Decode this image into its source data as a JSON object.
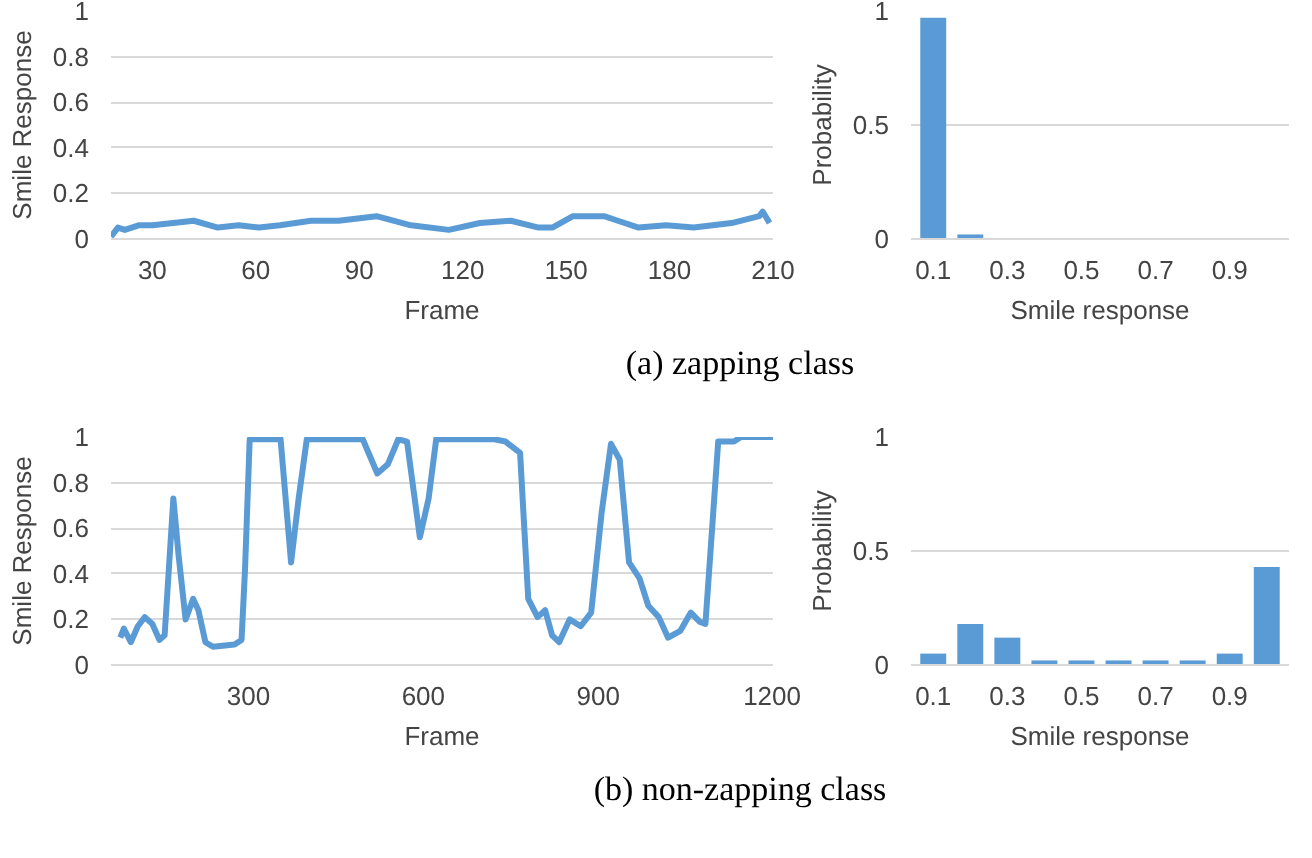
{
  "chart_data": [
    {
      "type": "line",
      "xlabel": "Frame",
      "ylabel": "Smile Response",
      "xlim": [
        18,
        210
      ],
      "xticks": [
        30,
        60,
        90,
        120,
        150,
        180,
        210
      ],
      "ylim": [
        0,
        1
      ],
      "yticks": [
        0,
        0.2,
        0.4,
        0.6,
        0.8,
        1
      ],
      "grid": "y",
      "annotations": [
        "(a)  zapping class"
      ],
      "series": [
        {
          "color": "#5b9bd5",
          "x": [
            18,
            20,
            22,
            26,
            30,
            36,
            42,
            49,
            55,
            61,
            67,
            76,
            84,
            95,
            105,
            116,
            125,
            134,
            142,
            146,
            152,
            161,
            165,
            171,
            179,
            187,
            198,
            206,
            207,
            209
          ],
          "values": [
            0.01,
            0.05,
            0.04,
            0.06,
            0.06,
            0.07,
            0.08,
            0.05,
            0.06,
            0.05,
            0.06,
            0.08,
            0.08,
            0.1,
            0.06,
            0.04,
            0.07,
            0.08,
            0.05,
            0.05,
            0.1,
            0.1,
            0.08,
            0.05,
            0.06,
            0.05,
            0.07,
            0.1,
            0.12,
            0.07
          ]
        }
      ]
    },
    {
      "type": "bar",
      "xlabel": "Smile response",
      "ylabel": "Probability",
      "categories": [
        "0.1",
        null,
        "0.3",
        null,
        "0.5",
        null,
        "0.7",
        null,
        "0.9",
        null
      ],
      "ylim": [
        0,
        1
      ],
      "yticks": [
        0,
        0.5,
        1
      ],
      "grid": "y",
      "series": [
        {
          "color": "#5b9bd5",
          "values": [
            0.97,
            0.02,
            0,
            0,
            0,
            0,
            0,
            0,
            0,
            0
          ]
        }
      ]
    },
    {
      "type": "line",
      "xlabel": "Frame",
      "ylabel": "Smile Response",
      "xlim": [
        64,
        1200
      ],
      "xticks": [
        300,
        600,
        900,
        1200
      ],
      "ylim": [
        0,
        1
      ],
      "yticks": [
        0,
        0.2,
        0.4,
        0.6,
        0.8,
        1
      ],
      "grid": "y",
      "annotations": [
        "(b)  non-zapping class"
      ],
      "series": [
        {
          "color": "#5b9bd5",
          "x": [
            80,
            86,
            98,
            110,
            122,
            135,
            147,
            156,
            171,
            180,
            192,
            205,
            214,
            226,
            239,
            276,
            288,
            294,
            302,
            355,
            373,
            386,
            400,
            496,
            521,
            539,
            557,
            572,
            594,
            609,
            622,
            722,
            741,
            766,
            780,
            796,
            809,
            821,
            833,
            851,
            870,
            888,
            906,
            922,
            937,
            953,
            971,
            986,
            1004,
            1020,
            1041,
            1059,
            1074,
            1084,
            1106,
            1133,
            1145,
            1200
          ],
          "values": [
            0.12,
            0.16,
            0.1,
            0.17,
            0.21,
            0.18,
            0.11,
            0.13,
            0.73,
            0.48,
            0.2,
            0.29,
            0.24,
            0.1,
            0.08,
            0.09,
            0.11,
            0.42,
            0.99,
            0.99,
            0.45,
            0.73,
            0.99,
            0.99,
            0.84,
            0.88,
            0.99,
            0.98,
            0.56,
            0.73,
            0.99,
            0.99,
            0.98,
            0.93,
            0.29,
            0.21,
            0.24,
            0.13,
            0.1,
            0.2,
            0.17,
            0.23,
            0.67,
            0.97,
            0.9,
            0.45,
            0.38,
            0.26,
            0.21,
            0.12,
            0.15,
            0.23,
            0.19,
            0.18,
            0.98,
            0.98,
            1,
            1
          ]
        }
      ]
    },
    {
      "type": "bar",
      "xlabel": "Smile response",
      "ylabel": "Probability",
      "categories": [
        "0.1",
        null,
        "0.3",
        null,
        "0.5",
        null,
        "0.7",
        null,
        "0.9",
        null
      ],
      "ylim": [
        0,
        1
      ],
      "yticks": [
        0,
        0.5,
        1
      ],
      "grid": "y",
      "series": [
        {
          "color": "#5b9bd5",
          "values": [
            0.05,
            0.18,
            0.12,
            0.02,
            0.02,
            0.02,
            0.02,
            0.02,
            0.05,
            0.43
          ]
        }
      ]
    }
  ]
}
